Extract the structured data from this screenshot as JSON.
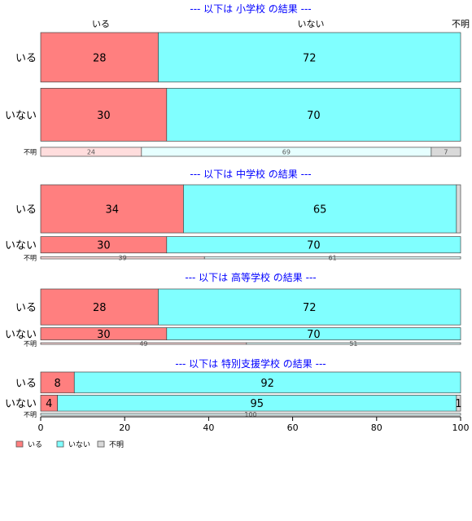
{
  "colors": {
    "いる": "#ff7f7f",
    "いない": "#80ffff",
    "不明": "#d9d9d9",
    "いる_light": "#ffdddd",
    "いない_light": "#e6ffff",
    "title": "#0000ff"
  },
  "column_headers": [
    "いる",
    "いない",
    "不明"
  ],
  "legend": [
    "いる",
    "いない",
    "不明"
  ],
  "chart_data": {
    "type": "bar",
    "orientation": "horizontal",
    "stacked": true,
    "xlim": [
      0,
      100
    ],
    "xticks": [
      0,
      20,
      40,
      60,
      80,
      100
    ],
    "legend_position": "bottom-left",
    "grid": false,
    "series_names": [
      "いる",
      "いない",
      "不明"
    ],
    "panels": [
      {
        "title": "--- 以下は 小学校 の結果 ---",
        "rows": [
          {
            "label": "いる",
            "weight": 44,
            "values": [
              28,
              72,
              0
            ],
            "labels": [
              "28",
              "72",
              ""
            ]
          },
          {
            "label": "いない",
            "weight": 47,
            "values": [
              30,
              70,
              0
            ],
            "labels": [
              "30",
              "70",
              ""
            ]
          },
          {
            "label": "不明",
            "weight": 8,
            "values": [
              24,
              69,
              7
            ],
            "labels": [
              "24",
              "69",
              "7"
            ]
          }
        ]
      },
      {
        "title": "--- 以下は 中学校 の結果 ---",
        "rows": [
          {
            "label": "いる",
            "weight": 44,
            "values": [
              34,
              65,
              1
            ],
            "labels": [
              "34",
              "65",
              ""
            ]
          },
          {
            "label": "いない",
            "weight": 15,
            "values": [
              30,
              70,
              0
            ],
            "labels": [
              "30",
              "70",
              ""
            ]
          },
          {
            "label": "不明",
            "weight": 2,
            "values": [
              39,
              61,
              0
            ],
            "labels": [
              "39",
              "61",
              ""
            ]
          }
        ]
      },
      {
        "title": "--- 以下は 高等学校 の結果 ---",
        "rows": [
          {
            "label": "いる",
            "weight": 44,
            "values": [
              28,
              72,
              0
            ],
            "labels": [
              "28",
              "72",
              ""
            ]
          },
          {
            "label": "いない",
            "weight": 15,
            "values": [
              30,
              70,
              0
            ],
            "labels": [
              "30",
              "70",
              ""
            ]
          },
          {
            "label": "不明",
            "weight": 2,
            "values": [
              49,
              51,
              0
            ],
            "labels": [
              "49",
              "51",
              ""
            ]
          }
        ]
      },
      {
        "title": "--- 以下は 特別支援学校 の結果 ---",
        "rows": [
          {
            "label": "いる",
            "weight": 17,
            "values": [
              8,
              92,
              0
            ],
            "labels": [
              "8",
              "92",
              ""
            ]
          },
          {
            "label": "いない",
            "weight": 13,
            "values": [
              4,
              95,
              1
            ],
            "labels": [
              "4",
              "95",
              "1"
            ]
          },
          {
            "label": "不明",
            "weight": 1.5,
            "values": [
              0,
              100,
              0
            ],
            "labels": [
              "",
              "100",
              ""
            ]
          }
        ]
      }
    ]
  }
}
